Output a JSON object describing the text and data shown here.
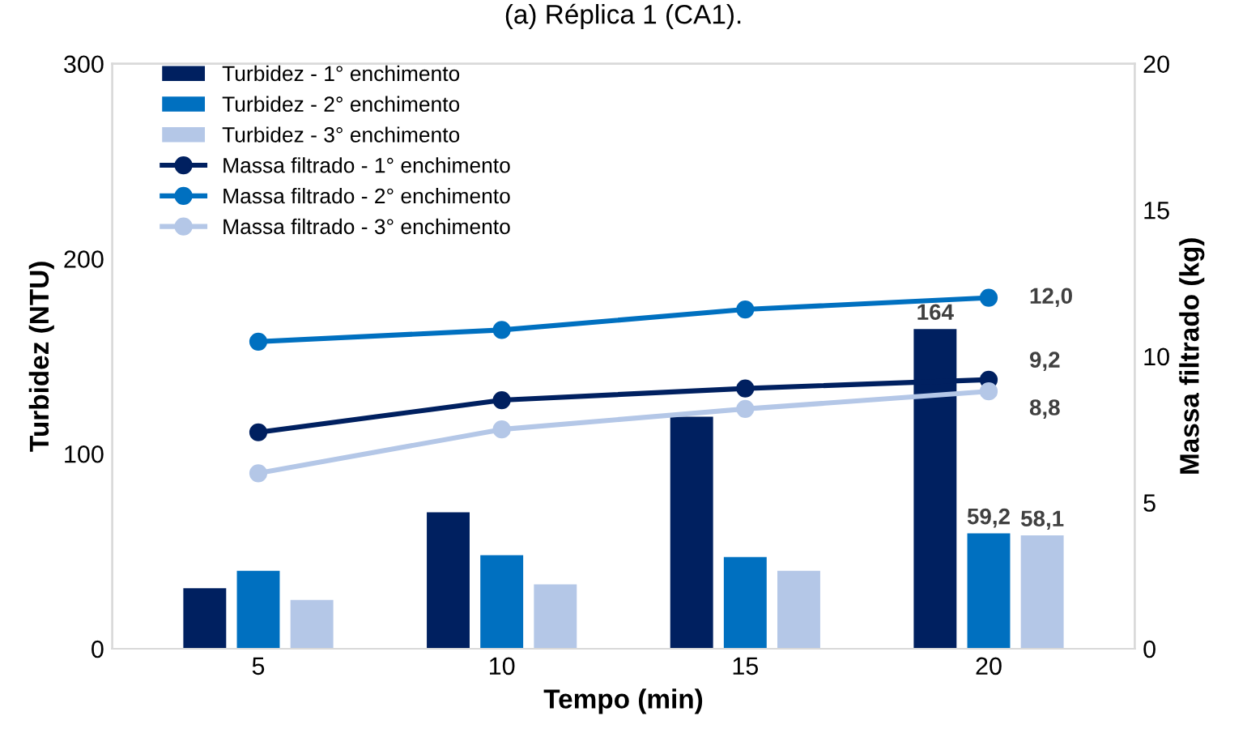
{
  "chart_data": {
    "type": "bar",
    "title": "(a) Réplica 1 (CA1).",
    "xlabel": "Tempo (min)",
    "ylabel": "Turbidez (NTU)",
    "y2label": "Massa filtrado (kg)",
    "categories": [
      "5",
      "10",
      "15",
      "20"
    ],
    "ylim": [
      0,
      300
    ],
    "yticks": [
      0,
      100,
      200,
      300
    ],
    "y2lim": [
      0,
      20
    ],
    "y2ticks": [
      0,
      5,
      10,
      15,
      20
    ],
    "grid": false,
    "legend": "top left",
    "marker": "circle",
    "series": [
      {
        "name": "Turbidez - 1° enchimento",
        "color": "#002060",
        "values": [
          31,
          70,
          119,
          164
        ],
        "value_labels": [
          null,
          null,
          null,
          "164"
        ]
      },
      {
        "name": "Turbidez - 2° enchimento",
        "color": "#0070c0",
        "values": [
          40,
          48,
          47,
          59.2
        ],
        "value_labels": [
          null,
          null,
          null,
          "59,2"
        ]
      },
      {
        "name": "Turbidez - 3° enchimento",
        "color": "#b4c7e7",
        "values": [
          25,
          33,
          40,
          58.1
        ],
        "value_labels": [
          null,
          null,
          null,
          "58,1"
        ]
      },
      {
        "name": "Massa filtrado - 1° enchimento",
        "type": "line",
        "axis": "y2",
        "color": "#002060",
        "values": [
          7.4,
          8.5,
          8.9,
          9.2
        ],
        "value_labels": [
          null,
          null,
          null,
          "9,2"
        ]
      },
      {
        "name": "Massa filtrado - 2° enchimento",
        "type": "line",
        "axis": "y2",
        "color": "#0070c0",
        "values": [
          10.5,
          10.9,
          11.6,
          12.0
        ],
        "value_labels": [
          null,
          null,
          null,
          "12,0"
        ]
      },
      {
        "name": "Massa filtrado - 3° enchimento",
        "type": "line",
        "axis": "y2",
        "color": "#b4c7e7",
        "values": [
          6.0,
          7.5,
          8.2,
          8.8
        ],
        "value_labels": [
          null,
          null,
          null,
          "8,8"
        ]
      }
    ]
  }
}
